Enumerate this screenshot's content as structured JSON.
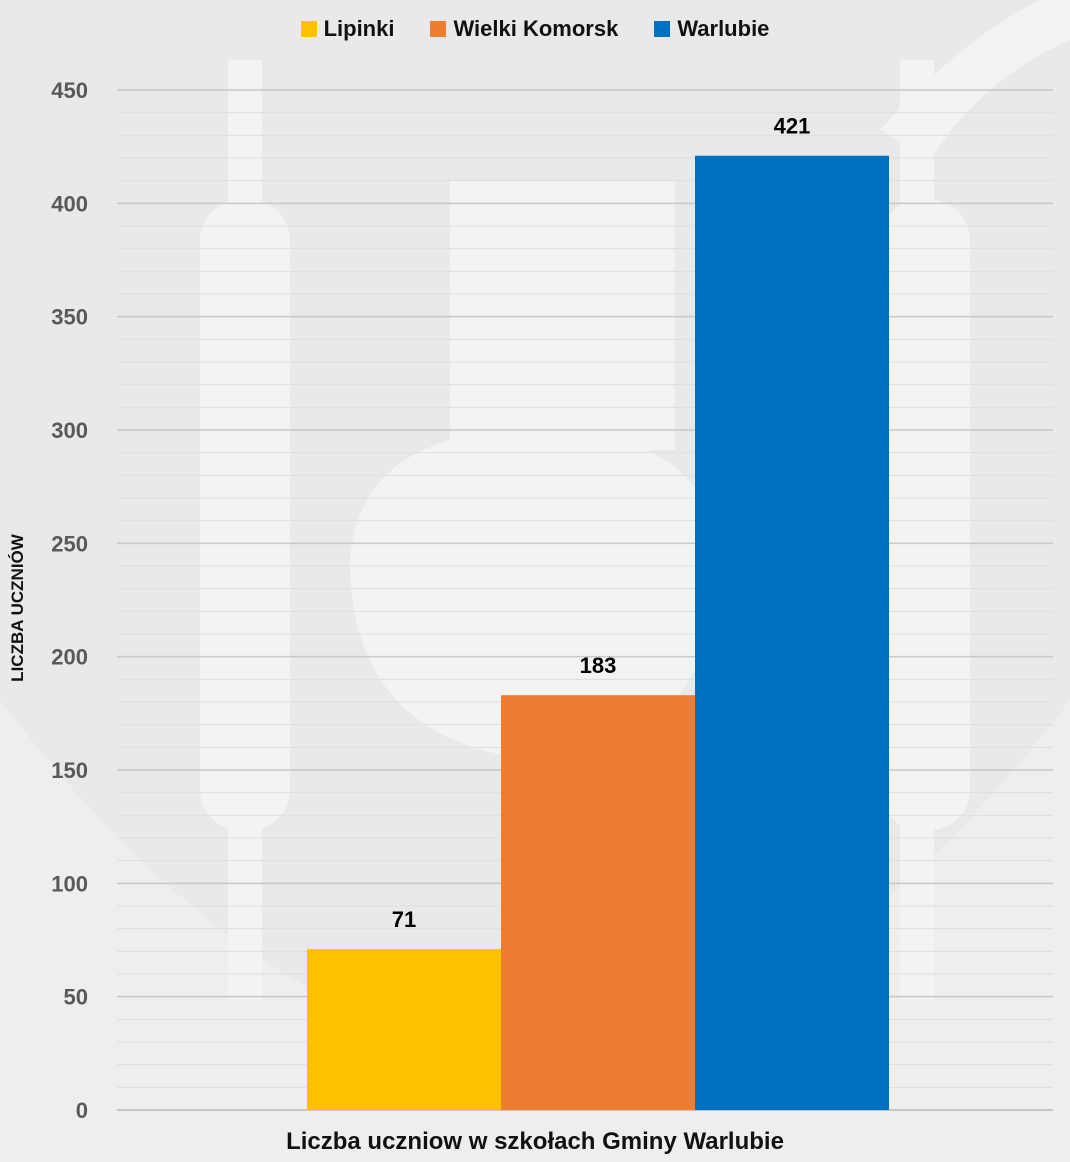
{
  "chart_data": {
    "type": "bar",
    "categories": [
      ""
    ],
    "series": [
      {
        "name": "Lipinki",
        "values": [
          71
        ],
        "color": "#FFC000"
      },
      {
        "name": "Wielki Komorsk",
        "values": [
          183
        ],
        "color": "#ED7D31"
      },
      {
        "name": "Warlubie",
        "values": [
          421
        ],
        "color": "#0070C0"
      }
    ],
    "title": "",
    "xlabel": "Liczba uczniow w szkołach Gminy Warlubie",
    "ylabel": "LICZBA UCZNIÓW",
    "ylim": [
      0,
      450
    ],
    "yticks": [
      "0",
      "50",
      "100",
      "150",
      "200",
      "250",
      "300",
      "350",
      "400",
      "450"
    ],
    "grid": true,
    "legend_position": "top-center",
    "data_labels": true
  }
}
